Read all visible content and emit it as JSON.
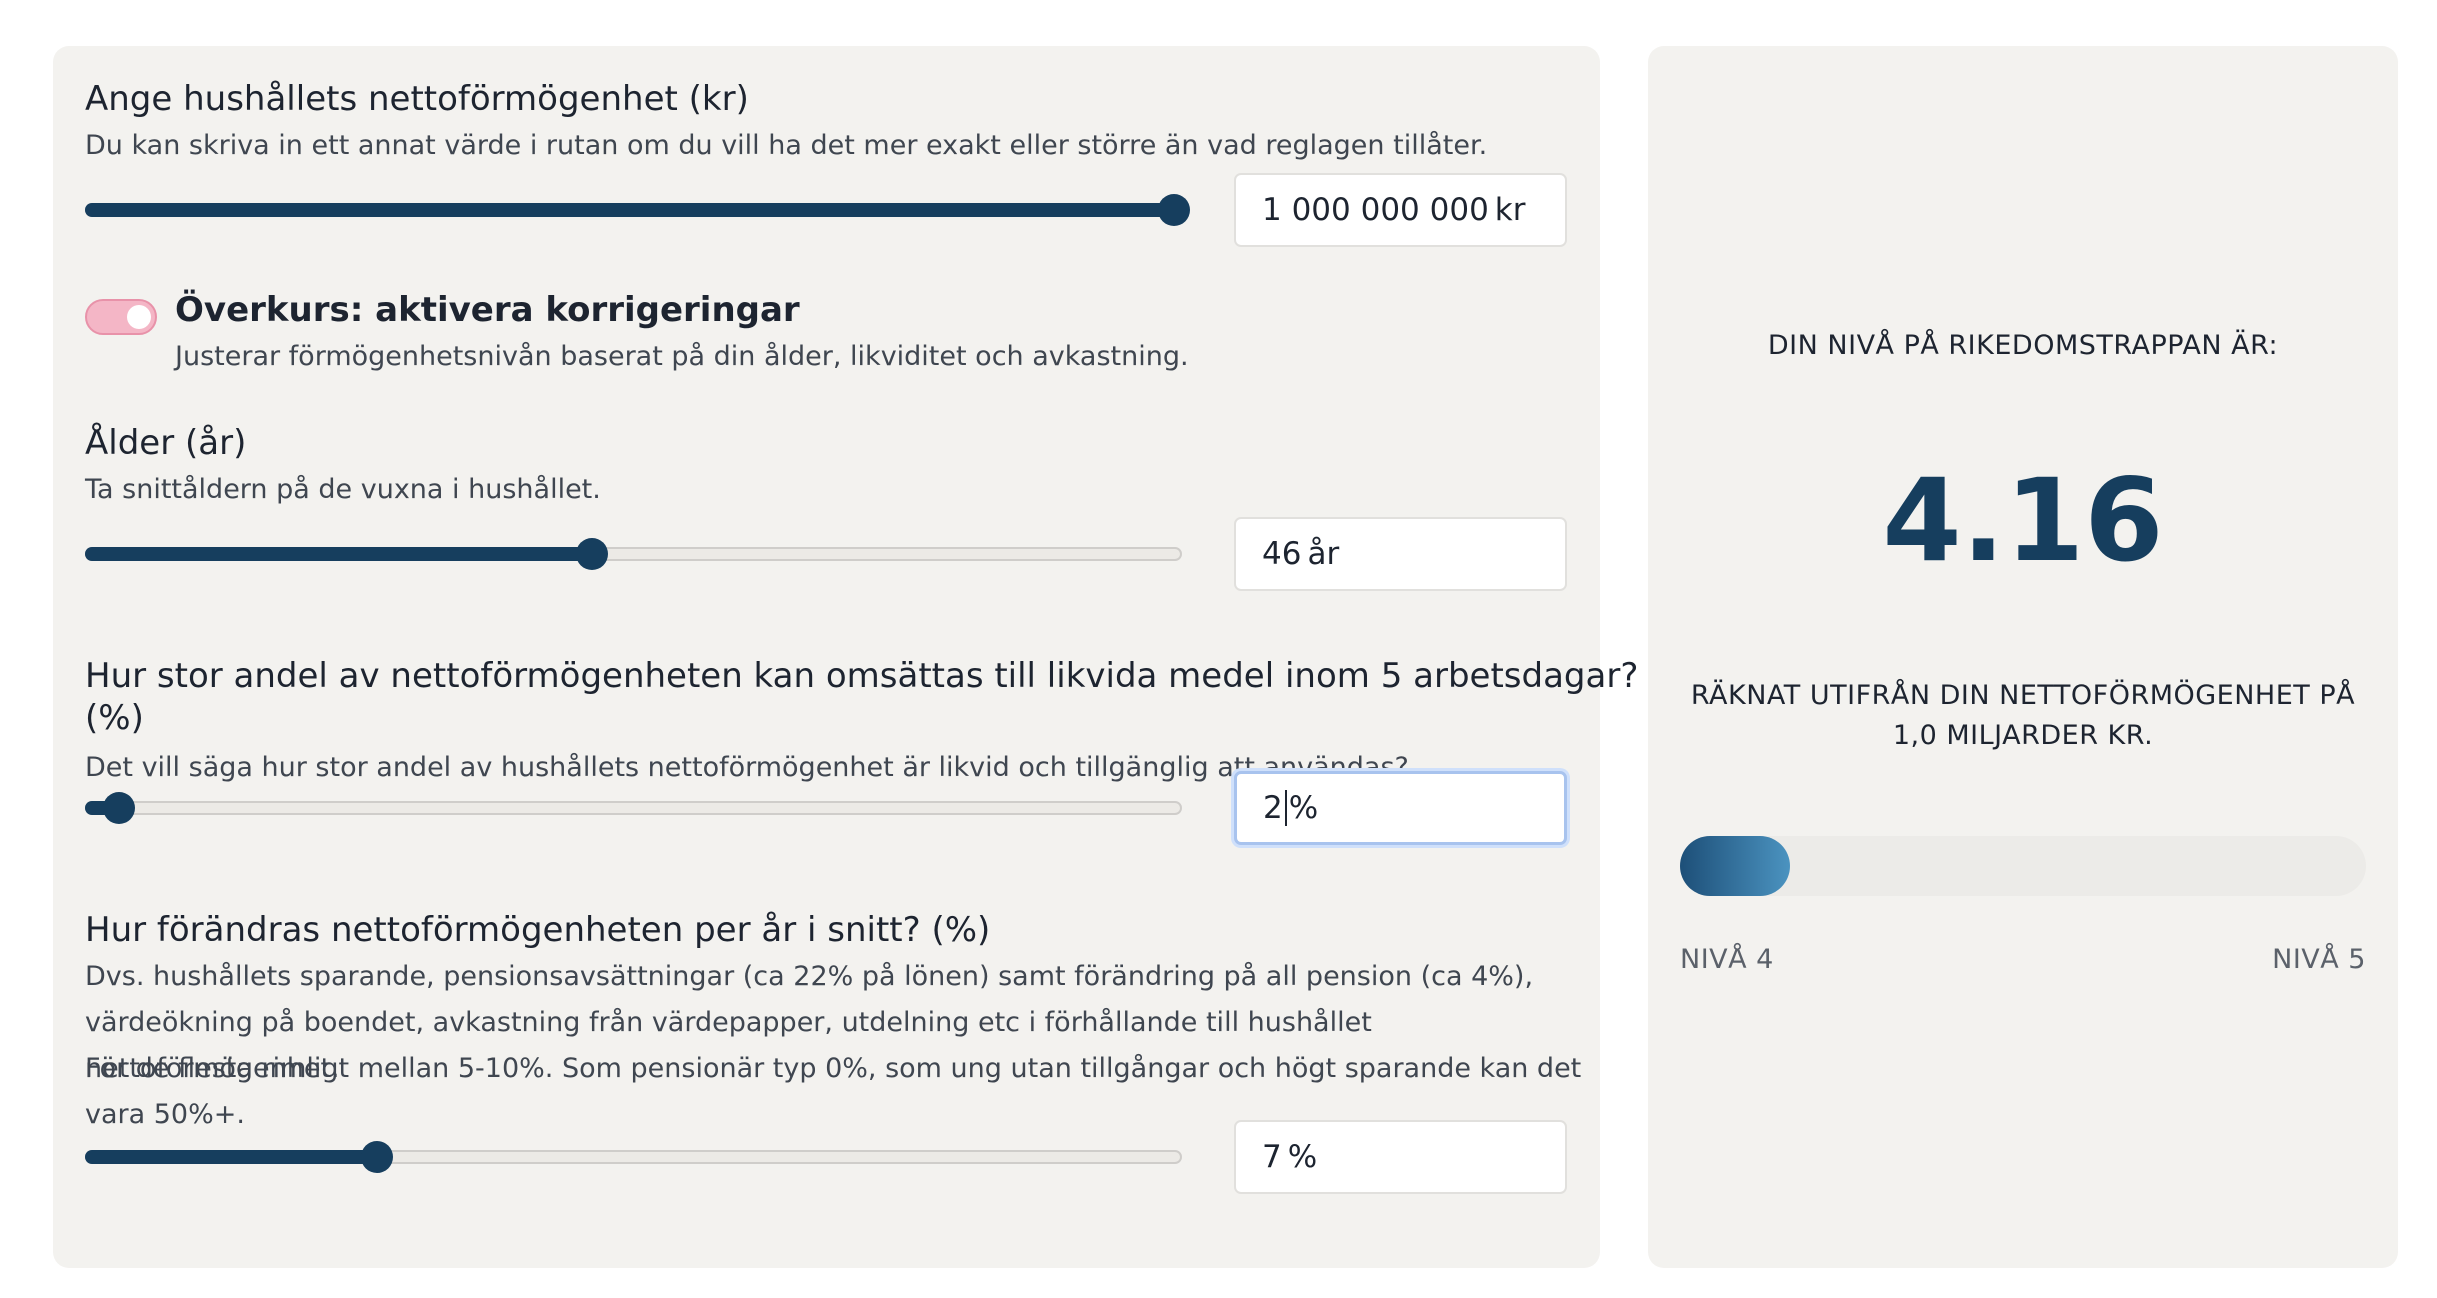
{
  "net_worth": {
    "heading": "Ange hushållets nettoförmögenhet (kr)",
    "description": "Du kan skriva in ett annat värde i rutan om du vill ha det mer exakt eller större än vad reglagen tillåter.",
    "slider_fraction": 1.0,
    "value": "1 000 000 000",
    "unit": "kr"
  },
  "advanced": {
    "toggle_on": true,
    "heading": "Överkurs: aktivera korrigeringar",
    "description": "Justerar förmögenhetsnivån baserat på din ålder, likviditet och avkastning."
  },
  "age": {
    "heading": "Ålder (år)",
    "description": "Ta snittåldern på de vuxna i hushållet.",
    "slider_fraction": 0.46,
    "value": "46",
    "unit": "år"
  },
  "liquidity": {
    "heading_line1": "Hur stor andel av nettoförmögenheten kan omsättas till likvida medel inom 5 arbetsdagar?",
    "heading_line2": "(%)",
    "description": "Det vill säga hur stor andel av hushållets nettoförmögenhet är likvid och tillgänglig att användas?",
    "slider_fraction": 0.02,
    "value": "2",
    "unit": "%"
  },
  "growth": {
    "heading": "Hur förändras nettoförmögenheten per år i snitt? (%)",
    "description_lines": [
      "Dvs. hushållets sparande, pensionsavsättningar (ca 22% på lönen) samt förändring på all pension (ca 4%),",
      "värdeökning på boendet, avkastning från värdepapper, utdelning etc i förhållande till hushållet nettoförmögenhet.",
      "För de flesta rimligt mellan 5-10%. Som pensionär typ 0%, som ung utan tillgångar och högt sparande kan det",
      "vara 50%+."
    ],
    "slider_fraction": 0.26,
    "value": "7",
    "unit": "%"
  },
  "result": {
    "caption": "DIN NIVÅ PÅ RIKEDOMSTRAPPAN ÄR:",
    "level": "4.16",
    "basis_line1": "RÄKNAT UTIFRÅN DIN NETTOFÖRMÖGENHET PÅ",
    "basis_line2": "1,0 MILJARDER KR.",
    "progress_fraction": 0.16,
    "min_label": "NIVÅ 4",
    "max_label": "NIVÅ 5"
  },
  "colors": {
    "accent": "#163e5e",
    "panel_bg": "#f3f2ef",
    "toggle_on": "#f4b6c6",
    "focus_ring": "#a8c3ee"
  }
}
